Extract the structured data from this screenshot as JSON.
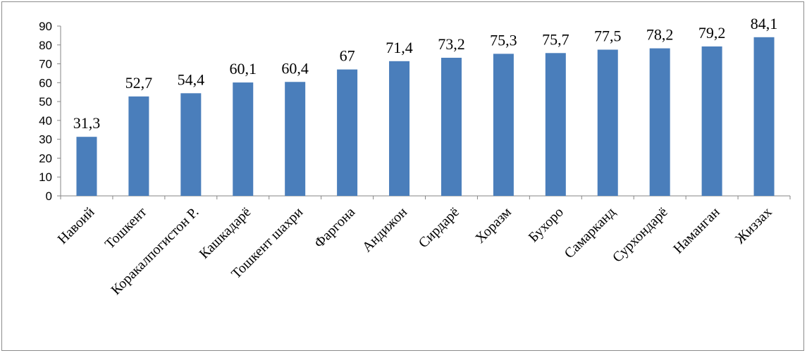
{
  "chart_data": {
    "type": "bar",
    "title": "",
    "xlabel": "",
    "ylabel": "",
    "ylim": [
      0,
      90
    ],
    "yticks": [
      0,
      10,
      20,
      30,
      40,
      50,
      60,
      70,
      80,
      90
    ],
    "ytick_labels": [
      "0",
      "10",
      "20",
      "30",
      "40",
      "50",
      "60",
      "70",
      "80",
      "90"
    ],
    "grid": false,
    "legend": "none",
    "bar_color": "#4a7ebb",
    "categories": [
      "Навоий",
      "Тошкент",
      "Коракалпогистон Р.",
      "Кашкадарё",
      "Тошкент шахри",
      "Фаргона",
      "Андижон",
      "Сирдарё",
      "Хоразм",
      "Бухоро",
      "Самарканд",
      "Сурхондарё",
      "Наманган",
      "Жиззах"
    ],
    "values": [
      31.3,
      52.7,
      54.4,
      60.1,
      60.4,
      67,
      71.4,
      73.2,
      75.3,
      75.7,
      77.5,
      78.2,
      79.2,
      84.1
    ],
    "data_labels": [
      "31,3",
      "52,7",
      "54,4",
      "60,1",
      "60,4",
      "67",
      "71,4",
      "73,2",
      "75,3",
      "75,7",
      "77,5",
      "78,2",
      "79,2",
      "84,1"
    ]
  }
}
